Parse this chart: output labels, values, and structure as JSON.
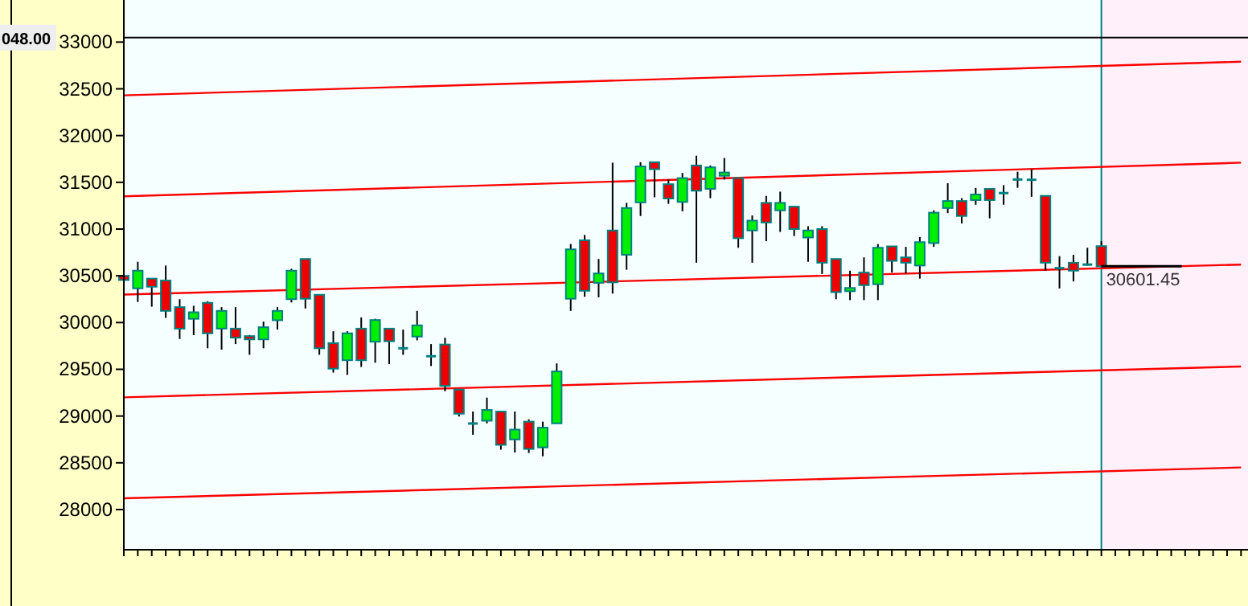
{
  "chart_data": {
    "type": "candlestick",
    "categories": [
      null,
      null,
      null,
      null,
      null,
      null,
      null,
      null,
      null,
      null,
      null,
      null,
      null,
      null,
      null,
      null,
      null,
      null,
      null,
      null,
      null,
      null,
      null,
      null,
      null,
      null,
      null,
      null,
      null,
      null,
      null,
      null,
      null,
      null,
      null,
      null,
      null,
      null,
      null,
      null,
      null,
      null,
      null,
      null,
      null,
      null,
      null,
      null,
      null,
      null,
      null,
      null,
      null,
      null,
      null,
      null,
      null,
      null,
      null,
      null,
      null,
      null,
      null,
      null,
      null,
      null,
      null,
      null,
      null,
      null,
      null,
      null,
      null,
      null,
      null,
      null,
      null,
      null,
      null,
      null,
      null
    ],
    "ohlc": [
      [
        30500,
        30525,
        30240,
        30455
      ],
      [
        30366,
        30650,
        30220,
        30555
      ],
      [
        30470,
        30470,
        30170,
        30383
      ],
      [
        30450,
        30610,
        30050,
        30125
      ],
      [
        30165,
        30250,
        29825,
        29935
      ],
      [
        30040,
        30180,
        29865,
        30110
      ],
      [
        30211,
        30228,
        29725,
        29885
      ],
      [
        29935,
        30165,
        29710,
        30125
      ],
      [
        29935,
        30165,
        29770,
        29838
      ],
      [
        29855,
        29867,
        29655,
        29820
      ],
      [
        29820,
        30010,
        29725,
        29950
      ],
      [
        30025,
        30165,
        29925,
        30125
      ],
      [
        30250,
        30575,
        30215,
        30555
      ],
      [
        30680,
        30680,
        30150,
        30255
      ],
      [
        30297,
        30297,
        29655,
        29725
      ],
      [
        29780,
        29907,
        29465,
        29507
      ],
      [
        29597,
        29907,
        29440,
        29885
      ],
      [
        29935,
        30055,
        29525,
        29597
      ],
      [
        29795,
        30040,
        29570,
        30027
      ],
      [
        29935,
        29935,
        29555,
        29800
      ],
      [
        29725,
        29925,
        29655,
        29725
      ],
      [
        29850,
        30125,
        29810,
        29970
      ],
      [
        29640,
        29770,
        29535,
        29640
      ],
      [
        29765,
        29838,
        29265,
        29323
      ],
      [
        29283,
        29283,
        28995,
        29025
      ],
      [
        28920,
        29048,
        28800,
        28920
      ],
      [
        28950,
        29197,
        28922,
        29065
      ],
      [
        29048,
        29048,
        28640,
        28692
      ],
      [
        28750,
        29048,
        28610,
        28855
      ],
      [
        28940,
        28965,
        28605,
        28648
      ],
      [
        28665,
        28940,
        28570,
        28876
      ],
      [
        28922,
        29563,
        28922,
        29477
      ],
      [
        30255,
        30840,
        30125,
        30783
      ],
      [
        30880,
        30937,
        30275,
        30340
      ],
      [
        30425,
        30680,
        30270,
        30525
      ],
      [
        30985,
        31710,
        30310,
        30430
      ],
      [
        30725,
        31280,
        30565,
        31225
      ],
      [
        31285,
        31715,
        31140,
        31670
      ],
      [
        31715,
        31715,
        31340,
        31640
      ],
      [
        31480,
        31530,
        31270,
        31327
      ],
      [
        31290,
        31600,
        31190,
        31545
      ],
      [
        31680,
        31785,
        30640,
        31410
      ],
      [
        31430,
        31680,
        31330,
        31660
      ],
      [
        31570,
        31760,
        31530,
        31605
      ],
      [
        31545,
        31545,
        30800,
        30902
      ],
      [
        30985,
        31145,
        30640,
        31090
      ],
      [
        31280,
        31355,
        30870,
        31070
      ],
      [
        31200,
        31400,
        30970,
        31280
      ],
      [
        31240,
        31240,
        30925,
        31000
      ],
      [
        30910,
        31030,
        30650,
        30985
      ],
      [
        31000,
        31030,
        30520,
        30640
      ],
      [
        30680,
        30680,
        30250,
        30325
      ],
      [
        30335,
        30555,
        30240,
        30370
      ],
      [
        30535,
        30697,
        30240,
        30400
      ],
      [
        30410,
        30840,
        30240,
        30800
      ],
      [
        30815,
        30815,
        30535,
        30660
      ],
      [
        30697,
        30810,
        30525,
        30640
      ],
      [
        30610,
        30915,
        30470,
        30860
      ],
      [
        30850,
        31200,
        30810,
        31175
      ],
      [
        31225,
        31490,
        31170,
        31300
      ],
      [
        31300,
        31330,
        31060,
        31140
      ],
      [
        31310,
        31440,
        31260,
        31370
      ],
      [
        31430,
        31430,
        31115,
        31310
      ],
      [
        31385,
        31470,
        31260,
        31385
      ],
      [
        31530,
        31613,
        31441,
        31530
      ],
      [
        31527,
        31642,
        31345,
        31527
      ],
      [
        31355,
        31355,
        30555,
        30640
      ],
      [
        30582,
        30710,
        30365,
        30582
      ],
      [
        30640,
        30725,
        30440,
        30555
      ],
      [
        30620,
        30800,
        30610,
        30620
      ],
      [
        30817,
        30870,
        30601.45,
        30601.45
      ],
      null,
      null,
      null,
      null,
      null,
      null,
      null,
      null,
      null,
      null
    ],
    "colors": [
      "#ee0000",
      "#00ee00",
      "#ee0000",
      "#ee0000",
      "#ee0000",
      "#00ee00",
      "#ee0000",
      "#00ee00",
      "#ee0000",
      "#ee0000",
      "#00ee00",
      "#00ee00",
      "#00ee00",
      "#ee0000",
      "#ee0000",
      "#ee0000",
      "#00ee00",
      "#ee0000",
      "#00ee00",
      "#ee0000",
      "#008080",
      "#00ee00",
      "#008080",
      "#ee0000",
      "#ee0000",
      "#008080",
      "#00ee00",
      "#ee0000",
      "#00ee00",
      "#ee0000",
      "#00ee00",
      "#00ee00",
      "#00ee00",
      "#ee0000",
      "#00ee00",
      "#ee0000",
      "#00ee00",
      "#00ee00",
      "#ee0000",
      "#ee0000",
      "#00ee00",
      "#ee0000",
      "#00ee00",
      "#00ee00",
      "#ee0000",
      "#00ee00",
      "#ee0000",
      "#00ee00",
      "#ee0000",
      "#00ee00",
      "#ee0000",
      "#ee0000",
      "#00ee00",
      "#ee0000",
      "#00ee00",
      "#ee0000",
      "#ee0000",
      "#00ee00",
      "#00ee00",
      "#00ee00",
      "#ee0000",
      "#00ee00",
      "#ee0000",
      "#008080",
      "#008080",
      "#008080",
      "#ee0000",
      "#008080",
      "#ee0000",
      "#008080",
      "#ee0000",
      null,
      null,
      null,
      null,
      null,
      null,
      null,
      null,
      null,
      null
    ],
    "series": [
      {
        "type": "line",
        "color": "#ff0000",
        "values": [
          32430,
          null,
          null,
          null,
          null,
          null,
          null,
          null,
          null,
          null,
          null,
          null,
          null,
          null,
          null,
          null,
          null,
          null,
          null,
          null,
          null,
          null,
          null,
          null,
          null,
          null,
          null,
          null,
          null,
          null,
          null,
          null,
          null,
          null,
          null,
          null,
          null,
          null,
          null,
          null,
          null,
          null,
          null,
          null,
          null,
          null,
          null,
          null,
          null,
          null,
          null,
          null,
          null,
          null,
          null,
          null,
          null,
          null,
          null,
          null,
          null,
          null,
          null,
          null,
          null,
          null,
          null,
          null,
          null,
          null,
          null,
          null,
          null,
          null,
          null,
          null,
          null,
          null,
          null,
          null,
          32790
        ]
      },
      {
        "type": "line",
        "color": "#ff0000",
        "values": [
          31350,
          null,
          null,
          null,
          null,
          null,
          null,
          null,
          null,
          null,
          null,
          null,
          null,
          null,
          null,
          null,
          null,
          null,
          null,
          null,
          null,
          null,
          null,
          null,
          null,
          null,
          null,
          null,
          null,
          null,
          null,
          null,
          null,
          null,
          null,
          null,
          null,
          null,
          null,
          null,
          null,
          null,
          null,
          null,
          null,
          null,
          null,
          null,
          null,
          null,
          null,
          null,
          null,
          null,
          null,
          null,
          null,
          null,
          null,
          null,
          null,
          null,
          null,
          null,
          null,
          null,
          null,
          null,
          null,
          null,
          null,
          null,
          null,
          null,
          null,
          null,
          null,
          null,
          null,
          null,
          31710
        ]
      },
      {
        "type": "line",
        "color": "#ff0000",
        "values": [
          30300,
          null,
          null,
          null,
          null,
          null,
          null,
          null,
          null,
          null,
          null,
          null,
          null,
          null,
          null,
          null,
          null,
          null,
          null,
          null,
          null,
          null,
          null,
          null,
          null,
          null,
          null,
          null,
          null,
          null,
          null,
          null,
          null,
          null,
          null,
          null,
          null,
          null,
          null,
          null,
          null,
          null,
          null,
          null,
          null,
          null,
          null,
          null,
          null,
          null,
          null,
          null,
          null,
          null,
          null,
          null,
          null,
          null,
          null,
          null,
          null,
          null,
          null,
          null,
          null,
          null,
          null,
          null,
          null,
          null,
          null,
          null,
          null,
          null,
          null,
          null,
          null,
          null,
          null,
          null,
          30620
        ]
      },
      {
        "type": "line",
        "color": "#ff0000",
        "values": [
          29200,
          null,
          null,
          null,
          null,
          null,
          null,
          null,
          null,
          null,
          null,
          null,
          null,
          null,
          null,
          null,
          null,
          null,
          null,
          null,
          null,
          null,
          null,
          null,
          null,
          null,
          null,
          null,
          null,
          null,
          null,
          null,
          null,
          null,
          null,
          null,
          null,
          null,
          null,
          null,
          null,
          null,
          null,
          null,
          null,
          null,
          null,
          null,
          null,
          null,
          null,
          null,
          null,
          null,
          null,
          null,
          null,
          null,
          null,
          null,
          null,
          null,
          null,
          null,
          null,
          null,
          null,
          null,
          null,
          null,
          null,
          null,
          null,
          null,
          null,
          null,
          null,
          null,
          null,
          null,
          29530
        ]
      },
      {
        "type": "line",
        "color": "#ff0000",
        "values": [
          28120,
          null,
          null,
          null,
          null,
          null,
          null,
          null,
          null,
          null,
          null,
          null,
          null,
          null,
          null,
          null,
          null,
          null,
          null,
          null,
          null,
          null,
          null,
          null,
          null,
          null,
          null,
          null,
          null,
          null,
          null,
          null,
          null,
          null,
          null,
          null,
          null,
          null,
          null,
          null,
          null,
          null,
          null,
          null,
          null,
          null,
          null,
          null,
          null,
          null,
          null,
          null,
          null,
          null,
          null,
          null,
          null,
          null,
          null,
          null,
          null,
          null,
          null,
          null,
          null,
          null,
          null,
          null,
          null,
          null,
          null,
          null,
          null,
          null,
          null,
          null,
          null,
          null,
          null,
          null,
          28450
        ]
      }
    ],
    "ylim": [
      27570,
      33450
    ],
    "yticks": [
      28000,
      28500,
      29000,
      29500,
      30000,
      30500,
      31000,
      31500,
      32000,
      32500,
      33000
    ],
    "annotations": [
      "048.00"
    ],
    "ref_lines": [
      {
        "axis": "y",
        "value": 33048,
        "color": "#000000"
      },
      {
        "axis": "y",
        "value": 30601.45,
        "label": "30601.45",
        "color": "#000000"
      }
    ]
  }
}
